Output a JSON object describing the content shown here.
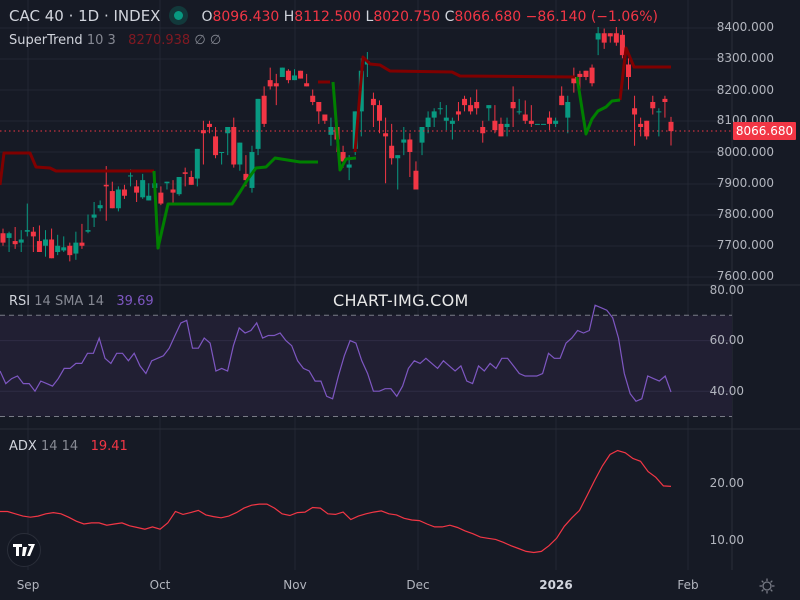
{
  "header": {
    "symbol": "CAC 40 · 1D · INDEX",
    "status_dot_color": "#089981",
    "open_label": "O",
    "open": "8096.430",
    "high_label": "H",
    "high": "8112.500",
    "low_label": "L",
    "low": "8020.750",
    "close_label": "C",
    "close": "8066.680",
    "change": "−86.140 (−1.06%)"
  },
  "indicators": {
    "supertrend": {
      "name": "SuperTrend",
      "params": "10 3",
      "value": "8270.938",
      "extra1": "∅",
      "extra2": "∅"
    },
    "rsi": {
      "name": "RSI",
      "params": "14 SMA 14",
      "value": "39.69"
    },
    "adx": {
      "name": "ADX",
      "params": "14 14",
      "value": "19.41"
    }
  },
  "price_axis": {
    "labels": [
      "8400.000",
      "8300.000",
      "8200.000",
      "8100.000",
      "8000.000",
      "7900.000",
      "7800.000",
      "7700.000",
      "7600.000"
    ],
    "last_price": "8066.680"
  },
  "rsi_axis": {
    "labels": [
      "80.00",
      "60.00",
      "40.00"
    ]
  },
  "adx_axis": {
    "labels": [
      "20.00",
      "10.00"
    ]
  },
  "time_axis": {
    "labels": [
      "Sep",
      "Oct",
      "Nov",
      "Dec",
      "2026",
      "Feb"
    ]
  },
  "watermark": "CHART-IMG.COM",
  "colors": {
    "up": "#089981",
    "down": "#f23645",
    "supertrend_up": "#008000",
    "supertrend_down": "#800000",
    "rsi": "#7e57c2",
    "adx": "#f23645",
    "background": "#161a25",
    "grid": "#232733"
  },
  "chart_data": [
    {
      "type": "candlestick",
      "title": "CAC 40 · 1D · INDEX",
      "ylim": [
        7580,
        8420
      ],
      "x_labels": [
        "Sep",
        "Oct",
        "Nov",
        "Dec",
        "2026",
        "Feb"
      ],
      "ohlc_approx": [
        [
          7740,
          7755,
          7700,
          7710
        ],
        [
          7725,
          7745,
          7680,
          7740
        ],
        [
          7715,
          7760,
          7690,
          7705
        ],
        [
          7710,
          7750,
          7680,
          7720
        ],
        [
          7745,
          7835,
          7730,
          7750
        ],
        [
          7745,
          7760,
          7680,
          7730
        ],
        [
          7715,
          7765,
          7680,
          7680
        ],
        [
          7700,
          7750,
          7665,
          7720
        ],
        [
          7720,
          7755,
          7660,
          7660
        ],
        [
          7680,
          7735,
          7670,
          7700
        ],
        [
          7685,
          7730,
          7680,
          7695
        ],
        [
          7700,
          7710,
          7650,
          7670
        ],
        [
          7675,
          7745,
          7655,
          7710
        ],
        [
          7710,
          7770,
          7690,
          7700
        ],
        [
          7745,
          7800,
          7740,
          7750
        ],
        [
          7790,
          7840,
          7760,
          7800
        ],
        [
          7820,
          7845,
          7810,
          7830
        ],
        [
          7895,
          7955,
          7780,
          7890
        ],
        [
          7875,
          7905,
          7820,
          7820
        ],
        [
          7820,
          7890,
          7810,
          7880
        ],
        [
          7880,
          7895,
          7850,
          7860
        ],
        [
          7925,
          7945,
          7890,
          7925
        ],
        [
          7890,
          7910,
          7840,
          7870
        ],
        [
          7855,
          7930,
          7850,
          7910
        ],
        [
          7845,
          7900,
          7855,
          7860
        ],
        [
          7885,
          7935,
          7890,
          7900
        ],
        [
          7870,
          7890,
          7830,
          7835
        ],
        [
          7900,
          7865,
          7880,
          7905
        ],
        [
          7880,
          7910,
          7835,
          7870
        ],
        [
          7865,
          7910,
          7860,
          7920
        ],
        [
          7935,
          7950,
          7890,
          7930
        ],
        [
          7920,
          7940,
          7895,
          7895
        ],
        [
          7915,
          8010,
          7890,
          8010
        ],
        [
          8070,
          8100,
          7960,
          8060
        ],
        [
          8090,
          8100,
          8060,
          8080
        ],
        [
          8050,
          8080,
          7980,
          7990
        ],
        [
          8000,
          8000,
          7960,
          8000
        ],
        [
          8060,
          8075,
          7990,
          8080
        ],
        [
          8080,
          8110,
          7950,
          7960
        ],
        [
          7960,
          8030,
          7940,
          8030
        ],
        [
          7930,
          7990,
          7890,
          7910
        ],
        [
          7885,
          8020,
          7870,
          8000
        ],
        [
          8010,
          8130,
          7990,
          8170
        ],
        [
          8180,
          8210,
          8080,
          8090
        ],
        [
          8230,
          8270,
          8200,
          8210
        ],
        [
          8220,
          8250,
          8150,
          8210
        ],
        [
          8240,
          8230,
          8250,
          8270
        ],
        [
          8260,
          8265,
          8220,
          8230
        ],
        [
          8230,
          8265,
          8240,
          8245
        ],
        [
          8260,
          8240,
          8240,
          8235
        ],
        [
          8220,
          8250,
          8220,
          8210
        ],
        [
          8180,
          8200,
          8150,
          8160
        ],
        [
          8160,
          8160,
          8090,
          8130
        ],
        [
          8120,
          8090,
          8090,
          8100
        ],
        [
          8055,
          8110,
          8020,
          8080
        ],
        [
          8080,
          8100,
          8000,
          8040
        ],
        [
          8000,
          8020,
          7950,
          7970
        ],
        [
          7950,
          7990,
          7910,
          7960
        ],
        [
          8010,
          8110,
          7990,
          8130
        ],
        [
          8130,
          8300,
          8050,
          8260
        ],
        [
          8280,
          8320,
          8240,
          8290
        ],
        [
          8170,
          8190,
          8080,
          8150
        ],
        [
          8150,
          8165,
          8060,
          8100
        ],
        [
          8060,
          8110,
          7900,
          8050
        ],
        [
          8020,
          8090,
          7960,
          7980
        ],
        [
          7980,
          7930,
          7880,
          7990
        ],
        [
          8030,
          8080,
          7990,
          8040
        ],
        [
          8040,
          8060,
          7920,
          8000
        ],
        [
          7940,
          7970,
          7880,
          7880
        ],
        [
          8030,
          8080,
          7990,
          8080
        ],
        [
          8080,
          8130,
          8060,
          8110
        ],
        [
          8110,
          8140,
          8080,
          8130
        ],
        [
          8140,
          8160,
          8120,
          8140
        ],
        [
          8100,
          8150,
          8070,
          8110
        ],
        [
          8090,
          8110,
          8040,
          8100
        ],
        [
          8130,
          8160,
          8100,
          8120
        ],
        [
          8170,
          8180,
          8130,
          8150
        ],
        [
          8150,
          8175,
          8120,
          8130
        ],
        [
          8160,
          8200,
          8120,
          8140
        ],
        [
          8080,
          8100,
          8030,
          8060
        ],
        [
          8140,
          8120,
          8100,
          8150
        ],
        [
          8100,
          8150,
          8060,
          8070
        ],
        [
          8090,
          8110,
          8050,
          8050
        ],
        [
          8080,
          8110,
          8050,
          8090
        ],
        [
          8160,
          8210,
          8080,
          8140
        ],
        [
          8130,
          8170,
          8120,
          8130
        ],
        [
          8120,
          8165,
          8090,
          8100
        ],
        [
          8100,
          8150,
          8080,
          8090
        ],
        [
          8090,
          8090,
          8090,
          8090
        ],
        [
          8090,
          8090,
          8090,
          8090
        ],
        [
          8110,
          8130,
          8070,
          8090
        ],
        [
          8090,
          8110,
          8080,
          8100
        ],
        [
          8180,
          8210,
          8150,
          8150
        ],
        [
          8110,
          8180,
          8060,
          8160
        ],
        [
          8240,
          8270,
          8190,
          8220
        ],
        [
          8250,
          8260,
          8200,
          8240
        ],
        [
          8260,
          8260,
          8230,
          8240
        ],
        [
          8270,
          8280,
          8210,
          8220
        ],
        [
          8360,
          8400,
          8310,
          8380
        ],
        [
          8380,
          8395,
          8330,
          8350
        ],
        [
          8380,
          8380,
          8350,
          8370
        ],
        [
          8380,
          8400,
          8340,
          8350
        ],
        [
          8375,
          8390,
          8300,
          8310
        ],
        [
          8280,
          8300,
          8200,
          8240
        ],
        [
          8140,
          8180,
          8020,
          8120
        ],
        [
          8090,
          8110,
          8050,
          8080
        ],
        [
          8100,
          8100,
          8040,
          8050
        ],
        [
          8160,
          8180,
          8120,
          8140
        ],
        [
          8130,
          8140,
          8050,
          8130
        ],
        [
          8170,
          8180,
          8110,
          8160
        ],
        [
          8096.43,
          8112.5,
          8020.75,
          8066.68
        ]
      ],
      "supertrend": {
        "last_value": 8270.938,
        "segments": [
          "up Sep",
          "down Sep–Oct",
          "up Oct–early Nov",
          "down early Nov",
          "up mid Nov",
          "down Nov–Jan",
          "up Jan",
          "down late Jan"
        ]
      },
      "last_price": 8066.68,
      "change": -86.14,
      "change_pct": -1.06
    },
    {
      "type": "line",
      "title": "RSI 14 SMA 14",
      "ylim": [
        28,
        82
      ],
      "bands": [
        70,
        30
      ],
      "y_ticks": [
        80,
        60,
        40
      ],
      "values": [
        48,
        43,
        45,
        46,
        43,
        43,
        40,
        44,
        43,
        42,
        45,
        49,
        49,
        51,
        51,
        55,
        55,
        61,
        53,
        51,
        55,
        55,
        52,
        55,
        50,
        47,
        52,
        53,
        54,
        57,
        62,
        67,
        68,
        57,
        57,
        61,
        59,
        48,
        49,
        48,
        58,
        65,
        63,
        64,
        67,
        61,
        62,
        62,
        63,
        60,
        58,
        52,
        49,
        48,
        44,
        44,
        38,
        37,
        46,
        54,
        60,
        59,
        52,
        47,
        40,
        40,
        41,
        41,
        38,
        42,
        49,
        52,
        51,
        53,
        51,
        49,
        52,
        50,
        48,
        50,
        44,
        43,
        50,
        48,
        51,
        49,
        53,
        53,
        50,
        47,
        46,
        46,
        46,
        47,
        55,
        53,
        53,
        59,
        61,
        64,
        63,
        64,
        74,
        73,
        72,
        69,
        61,
        47,
        39,
        36,
        37,
        46,
        45,
        44,
        46,
        39.69
      ],
      "last_value": 39.69
    },
    {
      "type": "line",
      "title": "ADX 14 14",
      "ylim": [
        5,
        28
      ],
      "y_ticks": [
        20,
        10
      ],
      "values": [
        15,
        15,
        14.6,
        14.2,
        14,
        14.2,
        14.6,
        14.8,
        14.6,
        14,
        13.3,
        12.8,
        13,
        13,
        12.6,
        12.8,
        13,
        12.5,
        12.2,
        11.9,
        12.3,
        11.9,
        13,
        15,
        14.5,
        14.8,
        15.2,
        14.4,
        14.1,
        13.9,
        14.2,
        14.8,
        15.6,
        16.1,
        16.3,
        16.3,
        15.6,
        14.6,
        14.3,
        14.8,
        14.9,
        15.7,
        15.6,
        14.6,
        14.5,
        14.9,
        13.6,
        14.2,
        14.6,
        14.9,
        15.1,
        14.6,
        14.4,
        13.8,
        13.5,
        13.4,
        12.8,
        12.3,
        12.3,
        12.6,
        12.2,
        11.6,
        11.1,
        10.5,
        10.3,
        10.1,
        9.6,
        9,
        8.5,
        8,
        7.8,
        8,
        9,
        10.3,
        12.4,
        13.9,
        15.2,
        17.8,
        20.5,
        23,
        25,
        25.7,
        25.3,
        24.3,
        23.8,
        22,
        21,
        19.5,
        19.41
      ],
      "last_value": 19.41
    }
  ]
}
